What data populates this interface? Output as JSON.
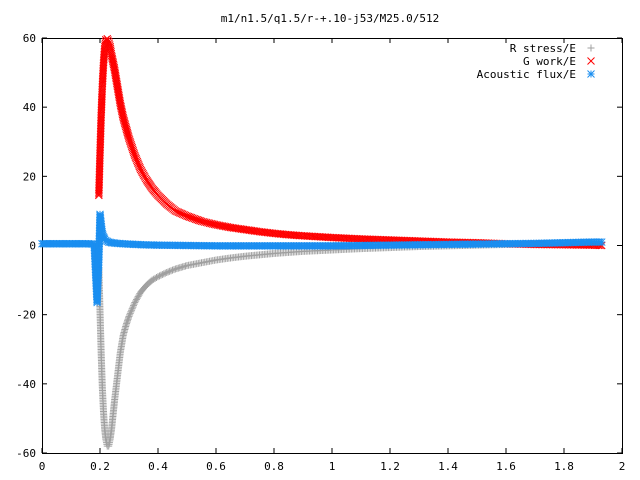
{
  "chart_data": {
    "type": "scatter",
    "title": "m1/n1.5/q1.5/r-+.10-j53/M25.0/512",
    "xlabel": "",
    "ylabel": "",
    "xlim": [
      0,
      2
    ],
    "ylim": [
      -60,
      60
    ],
    "x_ticks": [
      0,
      0.2,
      0.4,
      0.6,
      0.8,
      1,
      1.2,
      1.4,
      1.6,
      1.8,
      2
    ],
    "x_tick_labels": [
      "0",
      "0.2",
      "0.4",
      "0.6",
      "0.8",
      "1",
      "1.2",
      "1.4",
      "1.6",
      "1.8",
      "2"
    ],
    "y_ticks": [
      -60,
      -40,
      -20,
      0,
      20,
      40,
      60
    ],
    "y_tick_labels": [
      "-60",
      "-40",
      "-20",
      "0",
      "20",
      "40",
      "60"
    ],
    "grid": false,
    "legend_position": "top-right",
    "series": [
      {
        "name": "R stress/E",
        "marker": "plus",
        "color": "#a0a0a0",
        "points": [
          [
            0.196,
            -6.5
          ],
          [
            0.2,
            -19
          ],
          [
            0.204,
            -31
          ],
          [
            0.208,
            -41
          ],
          [
            0.212,
            -48
          ],
          [
            0.216,
            -53
          ],
          [
            0.22,
            -56
          ],
          [
            0.225,
            -58
          ],
          [
            0.23,
            -58
          ],
          [
            0.235,
            -56
          ],
          [
            0.24,
            -53
          ],
          [
            0.245,
            -49
          ],
          [
            0.25,
            -45
          ],
          [
            0.26,
            -38
          ],
          [
            0.27,
            -31
          ],
          [
            0.28,
            -26
          ],
          [
            0.29,
            -23
          ],
          [
            0.3,
            -20.5
          ],
          [
            0.32,
            -16.5
          ],
          [
            0.34,
            -13.5
          ],
          [
            0.36,
            -11.5
          ],
          [
            0.38,
            -10
          ],
          [
            0.4,
            -9
          ],
          [
            0.43,
            -7.8
          ],
          [
            0.46,
            -6.8
          ],
          [
            0.5,
            -5.8
          ],
          [
            0.55,
            -5
          ],
          [
            0.6,
            -4.2
          ],
          [
            0.65,
            -3.6
          ],
          [
            0.7,
            -3.1
          ],
          [
            0.75,
            -2.7
          ],
          [
            0.8,
            -2.3
          ],
          [
            0.85,
            -2
          ],
          [
            0.9,
            -1.7
          ],
          [
            1,
            -1.3
          ],
          [
            1.1,
            -0.9
          ],
          [
            1.2,
            -0.6
          ],
          [
            1.3,
            -0.3
          ],
          [
            1.4,
            -0.1
          ],
          [
            1.5,
            0.1
          ],
          [
            1.6,
            0.3
          ],
          [
            1.7,
            0.5
          ],
          [
            1.8,
            0.7
          ],
          [
            1.9,
            0.9
          ],
          [
            1.93,
            1
          ]
        ]
      },
      {
        "name": "G work/E",
        "marker": "cross",
        "color": "#ff0000",
        "points": [
          [
            0.196,
            14.5
          ],
          [
            0.2,
            26.5
          ],
          [
            0.204,
            37.5
          ],
          [
            0.208,
            46
          ],
          [
            0.212,
            52.5
          ],
          [
            0.216,
            57
          ],
          [
            0.22,
            59.5
          ],
          [
            0.225,
            59.8
          ],
          [
            0.23,
            59
          ],
          [
            0.235,
            57.5
          ],
          [
            0.24,
            55
          ],
          [
            0.25,
            51
          ],
          [
            0.26,
            46
          ],
          [
            0.27,
            41
          ],
          [
            0.28,
            37
          ],
          [
            0.29,
            34
          ],
          [
            0.3,
            31
          ],
          [
            0.32,
            26
          ],
          [
            0.34,
            22
          ],
          [
            0.36,
            19
          ],
          [
            0.38,
            16.5
          ],
          [
            0.4,
            14.5
          ],
          [
            0.43,
            12
          ],
          [
            0.46,
            10
          ],
          [
            0.5,
            8.5
          ],
          [
            0.55,
            7
          ],
          [
            0.6,
            6
          ],
          [
            0.65,
            5.2
          ],
          [
            0.7,
            4.6
          ],
          [
            0.75,
            4
          ],
          [
            0.8,
            3.5
          ],
          [
            0.85,
            3.1
          ],
          [
            0.9,
            2.8
          ],
          [
            1,
            2.3
          ],
          [
            1.1,
            1.9
          ],
          [
            1.2,
            1.6
          ],
          [
            1.3,
            1.3
          ],
          [
            1.4,
            1
          ],
          [
            1.5,
            0.8
          ],
          [
            1.6,
            0.5
          ],
          [
            1.7,
            0.3
          ],
          [
            1.8,
            0.2
          ],
          [
            1.9,
            0.1
          ],
          [
            1.93,
            0
          ]
        ]
      },
      {
        "name": "Acoustic flux/E",
        "marker": "star",
        "color": "#1a8ef0",
        "points": [
          [
            0,
            0.5
          ],
          [
            0.02,
            0.5
          ],
          [
            0.04,
            0.5
          ],
          [
            0.06,
            0.5
          ],
          [
            0.08,
            0.5
          ],
          [
            0.1,
            0.5
          ],
          [
            0.12,
            0.5
          ],
          [
            0.14,
            0.5
          ],
          [
            0.16,
            0.5
          ],
          [
            0.18,
            0.4
          ],
          [
            0.19,
            -16.5
          ],
          [
            0.196,
            -4
          ],
          [
            0.2,
            9
          ],
          [
            0.204,
            6
          ],
          [
            0.208,
            3.5
          ],
          [
            0.212,
            2.5
          ],
          [
            0.216,
            1.8
          ],
          [
            0.22,
            1.4
          ],
          [
            0.23,
            1
          ],
          [
            0.24,
            0.8
          ],
          [
            0.26,
            0.6
          ],
          [
            0.3,
            0.4
          ],
          [
            0.35,
            0.2
          ],
          [
            0.4,
            0.1
          ],
          [
            0.5,
            0
          ],
          [
            0.6,
            -0.1
          ],
          [
            0.7,
            -0.1
          ],
          [
            0.8,
            -0.1
          ],
          [
            0.9,
            -0.1
          ],
          [
            1,
            -0.1
          ],
          [
            1.1,
            0
          ],
          [
            1.2,
            0.1
          ],
          [
            1.3,
            0.2
          ],
          [
            1.4,
            0.3
          ],
          [
            1.5,
            0.4
          ],
          [
            1.6,
            0.5
          ],
          [
            1.7,
            0.6
          ],
          [
            1.8,
            0.8
          ],
          [
            1.9,
            1
          ],
          [
            1.93,
            1
          ]
        ]
      }
    ]
  }
}
